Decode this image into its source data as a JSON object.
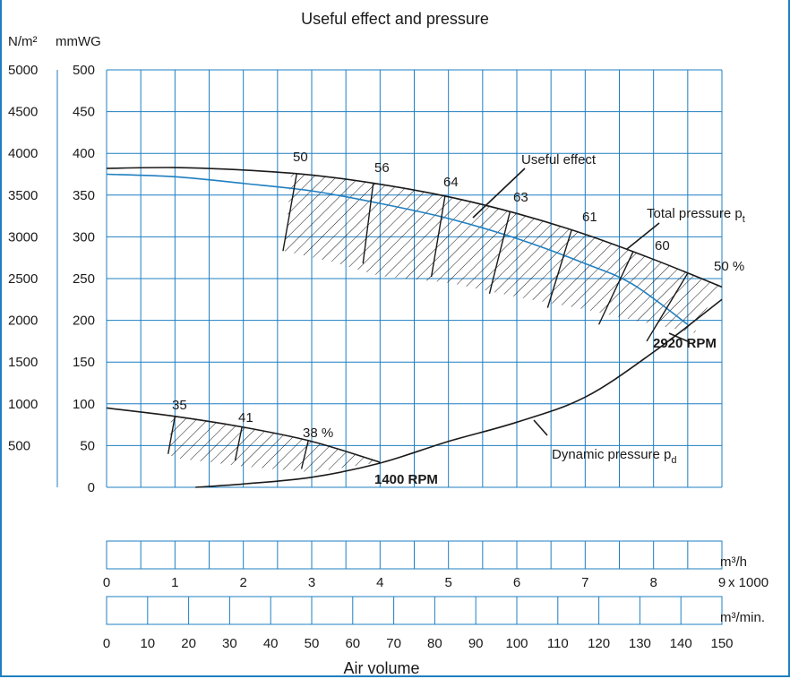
{
  "chart_data": {
    "type": "line",
    "title": "Useful effect and pressure",
    "y_left_unit": "N/m²",
    "y_right_unit": "mmWG",
    "y_left_ticks": [
      "5000",
      "4500",
      "4000",
      "3500",
      "3000",
      "2500",
      "2000",
      "1500",
      "1000",
      "500"
    ],
    "y_right_ticks": [
      "500",
      "450",
      "400",
      "350",
      "300",
      "250",
      "200",
      "150",
      "100",
      "50",
      "0"
    ],
    "ylim_mmWG": [
      0,
      500
    ],
    "xlim_m3_per_h_x1000": [
      0,
      9
    ],
    "grid": true,
    "x_axis_h": {
      "unit": "m³/h",
      "multiplier": "x 1000",
      "ticks": [
        "0",
        "1",
        "2",
        "3",
        "4",
        "5",
        "6",
        "7",
        "8",
        "9"
      ]
    },
    "x_axis_min": {
      "unit": "m³/min.",
      "ticks": [
        "0",
        "10",
        "20",
        "30",
        "40",
        "50",
        "60",
        "70",
        "80",
        "90",
        "100",
        "110",
        "120",
        "130",
        "140",
        "150"
      ]
    },
    "xlabel": "Air volume",
    "series": [
      {
        "name": "Total pressure p",
        "subscript": "t",
        "speed_label": "2920 RPM",
        "x": [
          0,
          1,
          2,
          3,
          4,
          5,
          6,
          7,
          8,
          9
        ],
        "y": [
          382,
          383,
          380,
          374,
          363,
          348,
          328,
          303,
          273,
          240
        ]
      },
      {
        "name": "Total pressure 1400 RPM",
        "speed_label": "1400 RPM",
        "x": [
          0,
          1,
          2,
          3,
          4
        ],
        "y": [
          95,
          85,
          72,
          55,
          30
        ]
      },
      {
        "name": "Dynamic pressure p",
        "subscript": "d",
        "x": [
          1.3,
          2,
          3,
          4,
          5,
          6,
          7,
          8,
          9
        ],
        "y": [
          0,
          4,
          12,
          29,
          55,
          78,
          108,
          162,
          225
        ]
      },
      {
        "name": "Blue curve",
        "x": [
          0,
          1,
          2,
          3,
          4,
          5,
          6,
          7,
          7.7,
          8.5
        ],
        "y": [
          375,
          372,
          364,
          355,
          340,
          322,
          298,
          268,
          243,
          195
        ]
      }
    ],
    "annotations": [
      "Useful effect"
    ],
    "efficiency_labels_2920": [
      "50",
      "56",
      "64",
      "63",
      "61",
      "60",
      "50 %"
    ],
    "efficiency_labels_1400": [
      "35",
      "41",
      "38 %"
    ],
    "line_colors": {
      "main": "#1a1a1a",
      "blue": "#1f7fc1",
      "grid": "#1f7fc1"
    }
  }
}
